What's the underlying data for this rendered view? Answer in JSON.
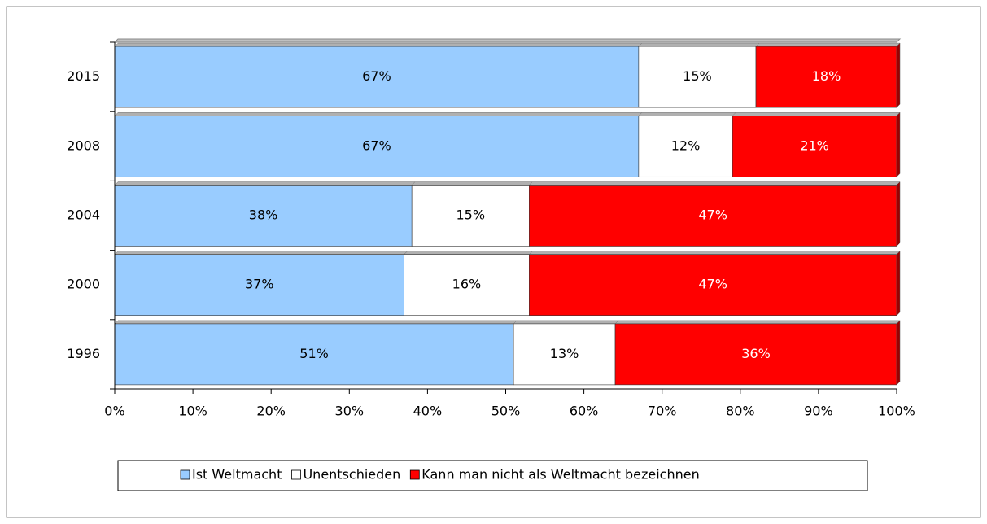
{
  "chart_data": {
    "type": "stacked_bar_horizontal",
    "categories": [
      "2015",
      "2008",
      "2004",
      "2000",
      "1996"
    ],
    "series": [
      {
        "name": "Ist Weltmacht",
        "color": "#99ccff",
        "values": [
          67,
          67,
          38,
          37,
          51
        ],
        "value_labels": [
          "67%",
          "67%",
          "38%",
          "37%",
          "51%"
        ]
      },
      {
        "name": "Unentschieden",
        "color": "#ffffff",
        "values": [
          15,
          12,
          15,
          16,
          13
        ],
        "value_labels": [
          "15%",
          "12%",
          "15%",
          "16%",
          "13%"
        ]
      },
      {
        "name": "Kann man nicht als Weltmacht bezeichnen",
        "color": "#ff0000",
        "values": [
          18,
          21,
          47,
          47,
          36
        ],
        "value_labels": [
          "18%",
          "21%",
          "47%",
          "47%",
          "36%"
        ]
      }
    ],
    "xlim": [
      0,
      100
    ],
    "xticks": [
      {
        "value": 0,
        "label": "0%"
      },
      {
        "value": 10,
        "label": "10%"
      },
      {
        "value": 20,
        "label": "20%"
      },
      {
        "value": 30,
        "label": "30%"
      },
      {
        "value": 40,
        "label": "40%"
      },
      {
        "value": 50,
        "label": "50%"
      },
      {
        "value": 60,
        "label": "60%"
      },
      {
        "value": 70,
        "label": "70%"
      },
      {
        "value": 80,
        "label": "80%"
      },
      {
        "value": 90,
        "label": "90%"
      },
      {
        "value": 100,
        "label": "100%"
      }
    ],
    "legend": "bottom"
  }
}
